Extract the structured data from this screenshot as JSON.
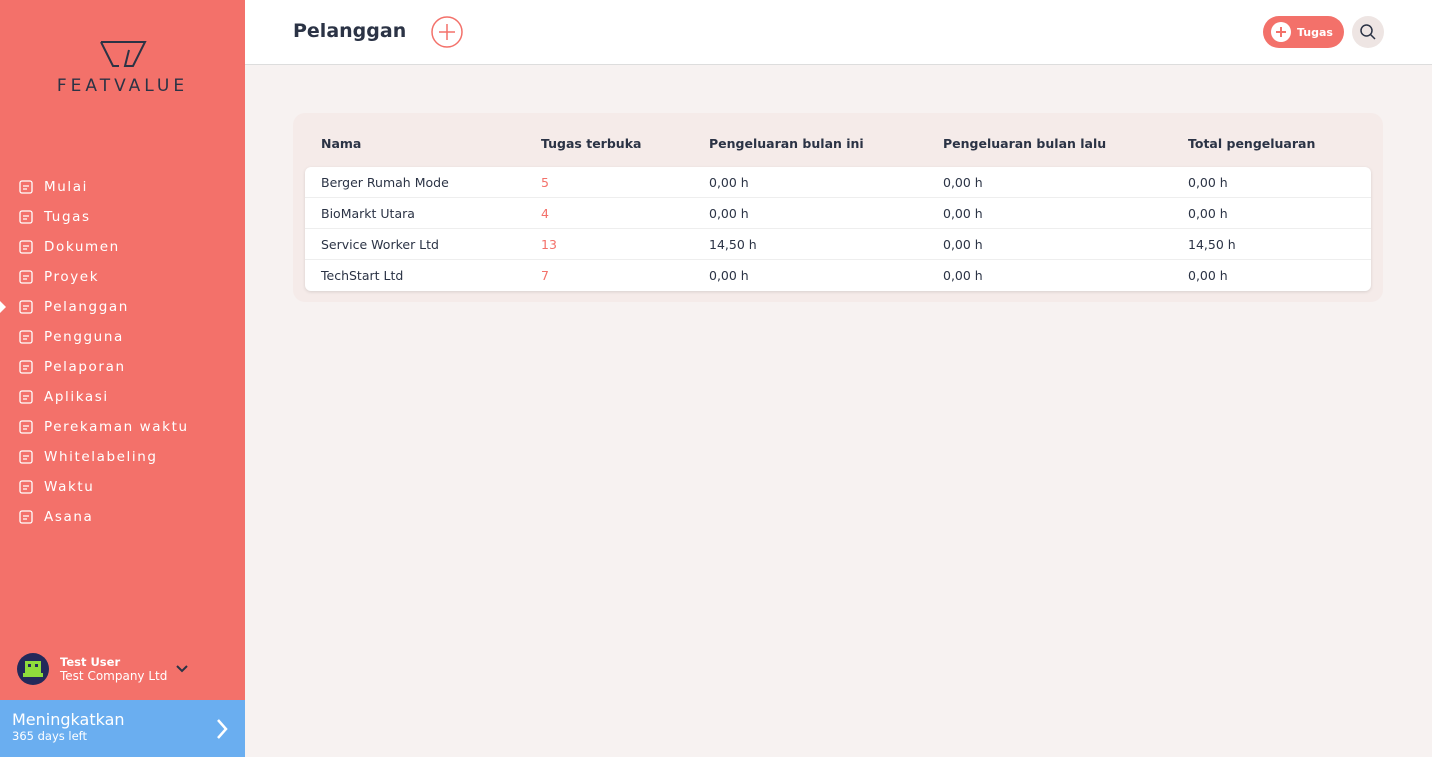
{
  "sidebar": {
    "logo": "FEATVALUE",
    "nav": [
      "Mulai",
      "Tugas",
      "Dokumen",
      "Proyek",
      "Pelanggan",
      "Pengguna",
      "Pelaporan",
      "Aplikasi",
      "Perekaman waktu",
      "Whitelabeling",
      "Waktu",
      "Asana"
    ],
    "user": {
      "name": "Test User",
      "company": "Test Company Ltd"
    },
    "upgrade": {
      "title": "Meningkatkan",
      "subtitle": "365 days left"
    }
  },
  "header": {
    "title": "Pelanggan",
    "button": "Tugas"
  },
  "table": {
    "columns": [
      "Nama",
      "Tugas terbuka",
      "Pengeluaran bulan ini",
      "Pengeluaran bulan lalu",
      "Total pengeluaran"
    ],
    "rows": [
      [
        "Berger Rumah Mode",
        5,
        "0,00 h",
        "0,00 h",
        "0,00 h"
      ],
      [
        "BioMarkt Utara",
        4,
        "0,00 h",
        "0,00 h",
        "0,00 h"
      ],
      [
        "Service Worker Ltd",
        13,
        "14,50 h",
        "0,00 h",
        "14,50 h"
      ],
      [
        "TechStart Ltd",
        7,
        "0,00 h",
        "0,00 h",
        "0,00 h"
      ]
    ]
  }
}
